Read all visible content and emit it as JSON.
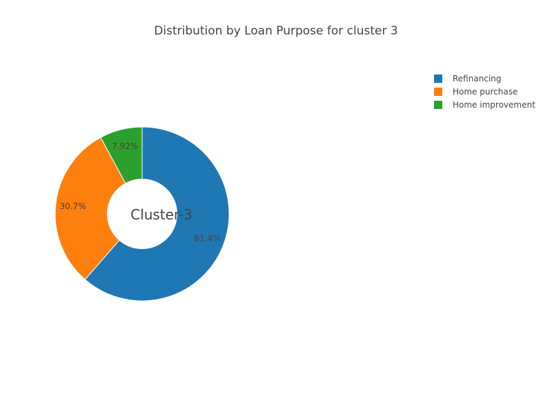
{
  "chart_data": {
    "type": "pie",
    "title": "Distribution by Loan Purpose for cluster 3",
    "center_label": "Cluster-3",
    "hole": true,
    "labels": [
      "Refinancing",
      "Home purchase",
      "Home improvement"
    ],
    "values": [
      61.4,
      30.7,
      7.92
    ],
    "value_labels": [
      "61.4%",
      "30.7%",
      "7.92%"
    ],
    "colors": [
      "#1f77b4",
      "#ff7f0e",
      "#2ca02c"
    ],
    "legend": {
      "placement": "top-right",
      "entries": [
        "Refinancing",
        "Home purchase",
        "Home improvement"
      ]
    }
  }
}
